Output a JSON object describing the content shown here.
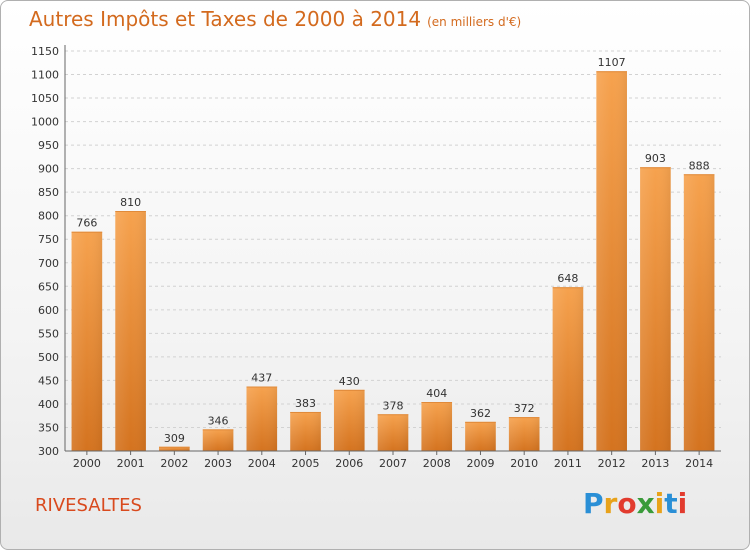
{
  "header": {
    "title": "Autres Impôts et Taxes de 2000 à 2014",
    "subtitle": "(en milliers d'€)"
  },
  "footer": {
    "commune": "RIVESALTES",
    "logo": {
      "letters": [
        "P",
        "r",
        "o",
        "x",
        "i",
        "t",
        "i"
      ],
      "colors": [
        "#2a8fd6",
        "#e8a21a",
        "#e23b2e",
        "#3a9b3a",
        "#e8a21a",
        "#2a8fd6",
        "#e23b2e"
      ]
    }
  },
  "chart_data": {
    "type": "bar",
    "categories": [
      "2000",
      "2001",
      "2002",
      "2003",
      "2004",
      "2005",
      "2006",
      "2007",
      "2008",
      "2009",
      "2010",
      "2011",
      "2012",
      "2013",
      "2014"
    ],
    "values": [
      766,
      810,
      309,
      346,
      437,
      383,
      430,
      378,
      404,
      362,
      372,
      648,
      1107,
      903,
      888
    ],
    "title": "Autres Impôts et Taxes de 2000 à 2014",
    "xlabel": "",
    "ylabel": "",
    "ylim": [
      300,
      1150
    ],
    "yticks": [
      300,
      350,
      400,
      450,
      500,
      550,
      600,
      650,
      700,
      750,
      800,
      850,
      900,
      950,
      1000,
      1050,
      1100,
      1150
    ],
    "grid": true,
    "bar_color_top": "#f6a24e",
    "bar_color_bottom": "#d4731f"
  }
}
